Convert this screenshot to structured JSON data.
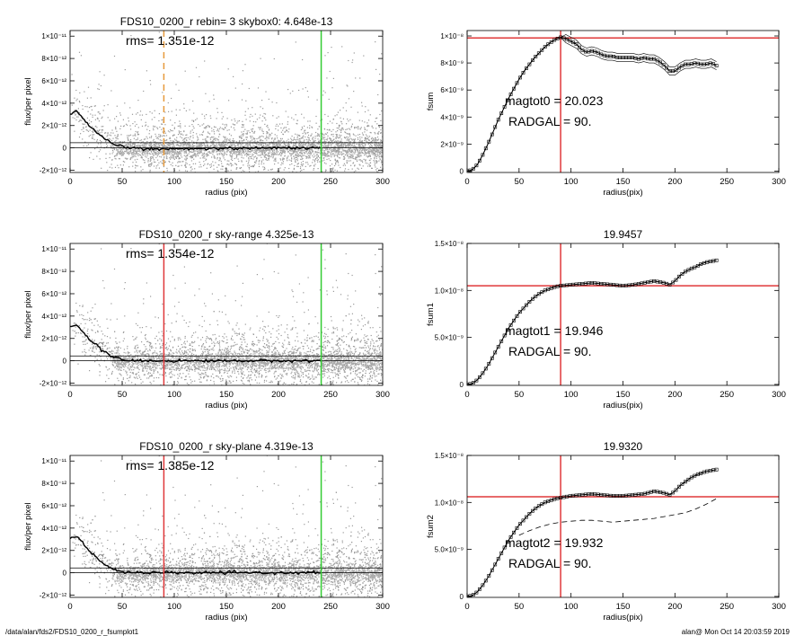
{
  "footer": {
    "left": "/data/alan/fds2/FDS10_0200_r_fsumplot1",
    "right": "alan@  Mon Oct 14 20:03:59 2019"
  },
  "colors": {
    "scatter_gray": "#999999",
    "red": "#e0383a",
    "green": "#33cc33",
    "orange": "#e69a3c"
  },
  "chart_data": [
    {
      "type": "scatter",
      "panel": "left-1",
      "title": "FDS10_0200_r rebin= 3    skybox0:  4.648e-13",
      "annotation": "rms= 1.351e-12",
      "xlabel": "radius (pix)",
      "ylabel": "flux/per pixel",
      "xlim": [
        0,
        300
      ],
      "ylim": [
        -2.2e-12,
        1.05e-11
      ],
      "xticks": [
        "0",
        "50",
        "100",
        "150",
        "200",
        "250",
        "300"
      ],
      "yticks": [
        "1×10⁻¹¹",
        "8×10⁻¹²",
        "6×10⁻¹²",
        "4×10⁻¹²",
        "2×10⁻¹²",
        "0",
        "-2×10⁻¹²"
      ],
      "ytick_values": [
        1e-11,
        8e-12,
        6e-12,
        4e-12,
        2e-12,
        0,
        -2e-12
      ],
      "vline_dashed_orange": 90,
      "vline_green": 241,
      "hlines": [
        4.648e-13,
        0
      ],
      "profile": {
        "x": [
          0,
          5,
          10,
          15,
          20,
          25,
          30,
          35,
          40,
          45,
          50,
          60,
          70,
          80,
          90,
          100,
          120,
          150,
          180,
          200,
          220,
          240
        ],
        "y": [
          3e-12,
          3.3e-12,
          2.9e-12,
          2.3e-12,
          1.8e-12,
          1.4e-12,
          1e-12,
          7e-13,
          4e-13,
          2e-13,
          1e-13,
          0,
          -5e-14,
          -1e-13,
          -1.2e-13,
          -1e-13,
          -5e-14,
          -5e-14,
          0,
          0,
          0,
          0
        ]
      }
    },
    {
      "type": "scatter",
      "panel": "left-2",
      "title": "FDS10_0200_r sky-range  4.325e-13",
      "annotation": "rms= 1.354e-12",
      "xlabel": "radius (pix)",
      "ylabel": "flux/per pixel",
      "xlim": [
        0,
        300
      ],
      "ylim": [
        -2.2e-12,
        1.05e-11
      ],
      "xticks": [
        "0",
        "50",
        "100",
        "150",
        "200",
        "250",
        "300"
      ],
      "yticks": [
        "1×10⁻¹¹",
        "8×10⁻¹²",
        "6×10⁻¹²",
        "4×10⁻¹²",
        "2×10⁻¹²",
        "0",
        "-2×10⁻¹²"
      ],
      "ytick_values": [
        1e-11,
        8e-12,
        6e-12,
        4e-12,
        2e-12,
        0,
        -2e-12
      ],
      "vline_red": 90,
      "vline_green": 241,
      "hlines": [
        4.325e-13,
        0
      ],
      "profile": {
        "x": [
          0,
          5,
          10,
          15,
          20,
          25,
          30,
          35,
          40,
          45,
          50,
          60,
          70,
          80,
          90,
          100,
          120,
          150,
          180,
          200,
          220,
          240
        ],
        "y": [
          3e-12,
          3.3e-12,
          2.9e-12,
          2.3e-12,
          1.8e-12,
          1.4e-12,
          1e-12,
          7e-13,
          4e-13,
          2e-13,
          1e-13,
          0,
          0,
          0,
          0,
          0,
          0,
          0,
          0,
          0,
          0,
          0
        ]
      }
    },
    {
      "type": "scatter",
      "panel": "left-3",
      "title": "FDS10_0200_r sky-plane  4.319e-13",
      "annotation": "rms= 1.385e-12",
      "xlabel": "radius (pix)",
      "ylabel": "flux/per pixel",
      "xlim": [
        0,
        300
      ],
      "ylim": [
        -2.2e-12,
        1.05e-11
      ],
      "xticks": [
        "0",
        "50",
        "100",
        "150",
        "200",
        "250",
        "300"
      ],
      "yticks": [
        "1×10⁻¹¹",
        "8×10⁻¹²",
        "6×10⁻¹²",
        "4×10⁻¹²",
        "2×10⁻¹²",
        "0",
        "-2×10⁻¹²"
      ],
      "ytick_values": [
        1e-11,
        8e-12,
        6e-12,
        4e-12,
        2e-12,
        0,
        -2e-12
      ],
      "vline_red": 90,
      "vline_green": 241,
      "hlines": [
        4.319e-13,
        0
      ],
      "profile": {
        "x": [
          0,
          5,
          10,
          15,
          20,
          25,
          30,
          35,
          40,
          45,
          50,
          60,
          70,
          80,
          90,
          100,
          120,
          150,
          180,
          200,
          220,
          240
        ],
        "y": [
          3e-12,
          3.3e-12,
          2.9e-12,
          2.3e-12,
          1.8e-12,
          1.4e-12,
          1e-12,
          7e-13,
          4e-13,
          2e-13,
          1e-13,
          0,
          0,
          0,
          0,
          0,
          0,
          0,
          0,
          0,
          0,
          0
        ]
      }
    },
    {
      "type": "line",
      "panel": "right-1",
      "title": "",
      "annotations": [
        "magtot0 =  20.023",
        "RADGAL =     90."
      ],
      "xlabel": "radius(pix)",
      "ylabel": "fsum",
      "xlim": [
        0,
        300
      ],
      "ylim": [
        -1e-10,
        1.04e-08
      ],
      "xticks": [
        "0",
        "50",
        "100",
        "150",
        "200",
        "250",
        "300"
      ],
      "yticks": [
        "1×10⁻⁸",
        "8×10⁻⁹",
        "6×10⁻⁹",
        "4×10⁻⁹",
        "2×10⁻⁹",
        "0"
      ],
      "ytick_values": [
        1e-08,
        8e-09,
        6e-09,
        4e-09,
        2e-09,
        0
      ],
      "vline_red": 90,
      "hline_red": 9.85e-09,
      "series": [
        {
          "x": [
            0,
            5,
            10,
            15,
            20,
            25,
            30,
            35,
            40,
            45,
            50,
            55,
            60,
            65,
            70,
            75,
            80,
            85,
            90,
            95,
            100,
            105,
            110,
            115,
            120,
            125,
            130,
            135,
            140,
            145,
            150,
            155,
            160,
            165,
            170,
            175,
            180,
            185,
            190,
            195,
            200,
            205,
            210,
            215,
            220,
            225,
            230,
            235,
            240
          ],
          "y": [
            0,
            1e-10,
            5e-10,
            1.2e-09,
            2e-09,
            2.9e-09,
            3.8e-09,
            4.6e-09,
            5.4e-09,
            6.1e-09,
            6.8e-09,
            7.4e-09,
            7.9e-09,
            8.4e-09,
            8.8e-09,
            9.2e-09,
            9.5e-09,
            9.75e-09,
            9.9e-09,
            9.8e-09,
            9.6e-09,
            9.4e-09,
            9e-09,
            8.8e-09,
            8.9e-09,
            8.8e-09,
            8.6e-09,
            8.5e-09,
            8.5e-09,
            8.4e-09,
            8.4e-09,
            8.4e-09,
            8.4e-09,
            8.3e-09,
            8.4e-09,
            8.3e-09,
            8.3e-09,
            8.1e-09,
            7.8e-09,
            7.4e-09,
            7.4e-09,
            7.7e-09,
            7.9e-09,
            7.9e-09,
            8e-09,
            7.9e-09,
            7.9e-09,
            8e-09,
            7.8e-09
          ]
        }
      ]
    },
    {
      "type": "line",
      "panel": "right-2",
      "title": "19.9457",
      "annotations": [
        "magtot1 =  19.946",
        "RADGAL =     90."
      ],
      "xlabel": "radius(pix)",
      "ylabel": "fsum1",
      "xlim": [
        0,
        300
      ],
      "ylim": [
        -1e-10,
        1.5e-08
      ],
      "xticks": [
        "0",
        "50",
        "100",
        "150",
        "200",
        "250",
        "300"
      ],
      "yticks": [
        "1.5×10⁻⁸",
        "1.0×10⁻⁸",
        "5.0×10⁻⁹",
        "0"
      ],
      "ytick_values": [
        1.5e-08,
        1e-08,
        5e-09,
        0
      ],
      "vline_red": 90,
      "hline_red": 1.05e-08,
      "series": [
        {
          "x": [
            0,
            5,
            10,
            15,
            20,
            25,
            30,
            35,
            40,
            45,
            50,
            55,
            60,
            65,
            70,
            75,
            80,
            85,
            90,
            95,
            100,
            110,
            120,
            130,
            140,
            150,
            160,
            170,
            180,
            190,
            195,
            200,
            205,
            210,
            215,
            220,
            225,
            230,
            235,
            240
          ],
          "y": [
            0,
            1e-10,
            5e-10,
            1.2e-09,
            2e-09,
            3e-09,
            4e-09,
            5e-09,
            6e-09,
            6.8e-09,
            7.6e-09,
            8.2e-09,
            8.8e-09,
            9.3e-09,
            9.7e-09,
            1e-08,
            1.02e-08,
            1.04e-08,
            1.05e-08,
            1.055e-08,
            1.06e-08,
            1.07e-08,
            1.08e-08,
            1.07e-08,
            1.06e-08,
            1.05e-08,
            1.06e-08,
            1.08e-08,
            1.1e-08,
            1.08e-08,
            1.06e-08,
            1.1e-08,
            1.16e-08,
            1.2e-08,
            1.23e-08,
            1.25e-08,
            1.28e-08,
            1.3e-08,
            1.31e-08,
            1.32e-08
          ]
        }
      ]
    },
    {
      "type": "line",
      "panel": "right-3",
      "title": "19.9320",
      "annotations": [
        "magtot2 =  19.932",
        "RADGAL =     90."
      ],
      "xlabel": "radius(pix)",
      "ylabel": "fsum2",
      "xlim": [
        0,
        300
      ],
      "ylim": [
        -1e-10,
        1.5e-08
      ],
      "xticks": [
        "0",
        "50",
        "100",
        "150",
        "200",
        "250",
        "300"
      ],
      "yticks": [
        "1.5×10⁻⁸",
        "1.0×10⁻⁸",
        "5.0×10⁻⁹",
        "0"
      ],
      "ytick_values": [
        1.5e-08,
        1e-08,
        5e-09,
        0
      ],
      "vline_red": 90,
      "hline_red": 1.06e-08,
      "series": [
        {
          "x": [
            0,
            5,
            10,
            15,
            20,
            25,
            30,
            35,
            40,
            45,
            50,
            55,
            60,
            65,
            70,
            75,
            80,
            85,
            90,
            95,
            100,
            110,
            120,
            130,
            140,
            150,
            160,
            170,
            180,
            190,
            195,
            200,
            205,
            210,
            215,
            220,
            225,
            230,
            235,
            240
          ],
          "y": [
            0,
            1e-10,
            5e-10,
            1.2e-09,
            2e-09,
            3e-09,
            4e-09,
            5e-09,
            6e-09,
            6.8e-09,
            7.6e-09,
            8.2e-09,
            8.8e-09,
            9.3e-09,
            9.7e-09,
            1e-08,
            1.02e-08,
            1.04e-08,
            1.05e-08,
            1.06e-08,
            1.07e-08,
            1.08e-08,
            1.09e-08,
            1.08e-08,
            1.07e-08,
            1.07e-08,
            1.08e-08,
            1.09e-08,
            1.12e-08,
            1.1e-08,
            1.08e-08,
            1.12e-08,
            1.18e-08,
            1.22e-08,
            1.26e-08,
            1.29e-08,
            1.31e-08,
            1.33e-08,
            1.34e-08,
            1.35e-08
          ]
        },
        {
          "dashed": true,
          "x": [
            50,
            60,
            70,
            80,
            90,
            100,
            110,
            120,
            130,
            140,
            150,
            160,
            170,
            180,
            190,
            200,
            210,
            220,
            230,
            240
          ],
          "y": [
            6.5e-09,
            7e-09,
            7.4e-09,
            7.7e-09,
            7.9e-09,
            8e-09,
            8.1e-09,
            8.1e-09,
            8e-09,
            7.9e-09,
            8e-09,
            8.1e-09,
            8.2e-09,
            8.3e-09,
            8.5e-09,
            8.7e-09,
            8.9e-09,
            9.3e-09,
            9.8e-09,
            1.04e-08
          ]
        }
      ]
    }
  ]
}
